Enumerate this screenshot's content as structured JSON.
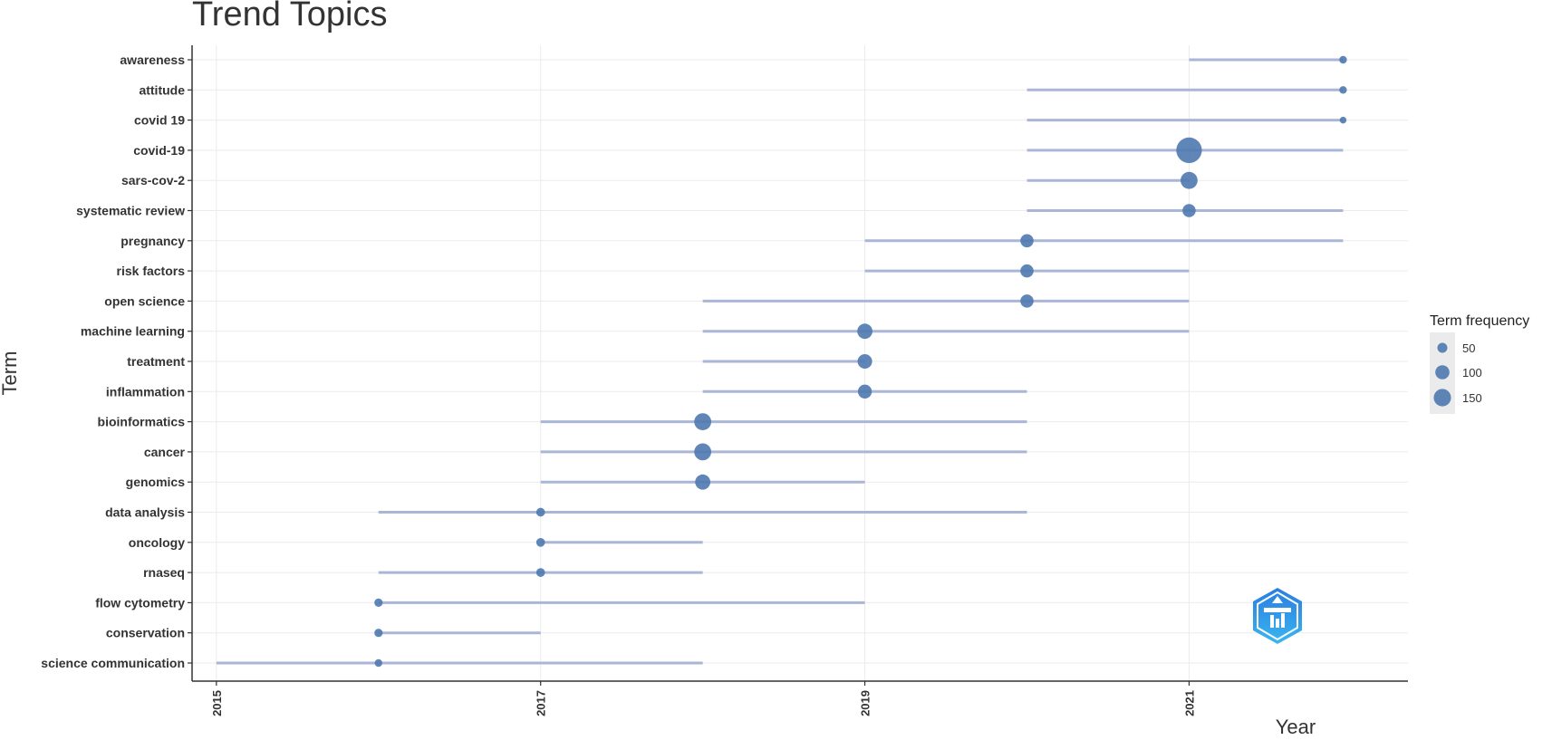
{
  "chart_data": {
    "type": "scatter",
    "title": "Trend Topics",
    "xlabel": "Year",
    "ylabel": "Term",
    "xlim": [
      2014.85,
      2022.35
    ],
    "x_ticks": [
      "2015",
      "2017",
      "2019",
      "2021"
    ],
    "grid": true,
    "legend": {
      "title": "Term frequency",
      "placement": "right",
      "sizes": [
        50,
        100,
        150
      ],
      "labels": [
        "50",
        "100",
        "150"
      ]
    },
    "colors": {
      "point": "#4f79b0",
      "range_line": "#a9b6d6",
      "grid": "#ebebeb",
      "axis": "#333333"
    },
    "terms": [
      {
        "term": "awareness",
        "start": 2021,
        "end": 2021.95,
        "peak": 2021.95,
        "freq": 15
      },
      {
        "term": "attitude",
        "start": 2020,
        "end": 2021.95,
        "peak": 2021.95,
        "freq": 15
      },
      {
        "term": "covid 19",
        "start": 2020,
        "end": 2021.95,
        "peak": 2021.95,
        "freq": 12
      },
      {
        "term": "covid-19",
        "start": 2020,
        "end": 2021.95,
        "peak": 2021,
        "freq": 170
      },
      {
        "term": "sars-cov-2",
        "start": 2020,
        "end": 2021,
        "peak": 2021,
        "freq": 75
      },
      {
        "term": "systematic review",
        "start": 2020,
        "end": 2021.95,
        "peak": 2021,
        "freq": 45
      },
      {
        "term": "pregnancy",
        "start": 2019,
        "end": 2021.95,
        "peak": 2020,
        "freq": 45
      },
      {
        "term": "risk factors",
        "start": 2019,
        "end": 2021,
        "peak": 2020,
        "freq": 45
      },
      {
        "term": "open science",
        "start": 2018,
        "end": 2021,
        "peak": 2020,
        "freq": 45
      },
      {
        "term": "machine learning",
        "start": 2018,
        "end": 2021,
        "peak": 2019,
        "freq": 60
      },
      {
        "term": "treatment",
        "start": 2018,
        "end": 2019,
        "peak": 2019,
        "freq": 55
      },
      {
        "term": "inflammation",
        "start": 2018,
        "end": 2020,
        "peak": 2019,
        "freq": 50
      },
      {
        "term": "bioinformatics",
        "start": 2017,
        "end": 2020,
        "peak": 2018,
        "freq": 75
      },
      {
        "term": "cancer",
        "start": 2017,
        "end": 2020,
        "peak": 2018,
        "freq": 75
      },
      {
        "term": "genomics",
        "start": 2017,
        "end": 2019,
        "peak": 2018,
        "freq": 60
      },
      {
        "term": "data analysis",
        "start": 2016,
        "end": 2020,
        "peak": 2017,
        "freq": 20
      },
      {
        "term": "oncology",
        "start": 2017,
        "end": 2018,
        "peak": 2017,
        "freq": 20
      },
      {
        "term": "rnaseq",
        "start": 2016,
        "end": 2018,
        "peak": 2017,
        "freq": 20
      },
      {
        "term": "flow cytometry",
        "start": 2016,
        "end": 2019,
        "peak": 2016,
        "freq": 18
      },
      {
        "term": "conservation",
        "start": 2016,
        "end": 2017,
        "peak": 2016,
        "freq": 18
      },
      {
        "term": "science communication",
        "start": 2015,
        "end": 2018,
        "peak": 2016,
        "freq": 15
      }
    ]
  },
  "logo": {
    "name": "bibliometrix-logo-icon"
  }
}
